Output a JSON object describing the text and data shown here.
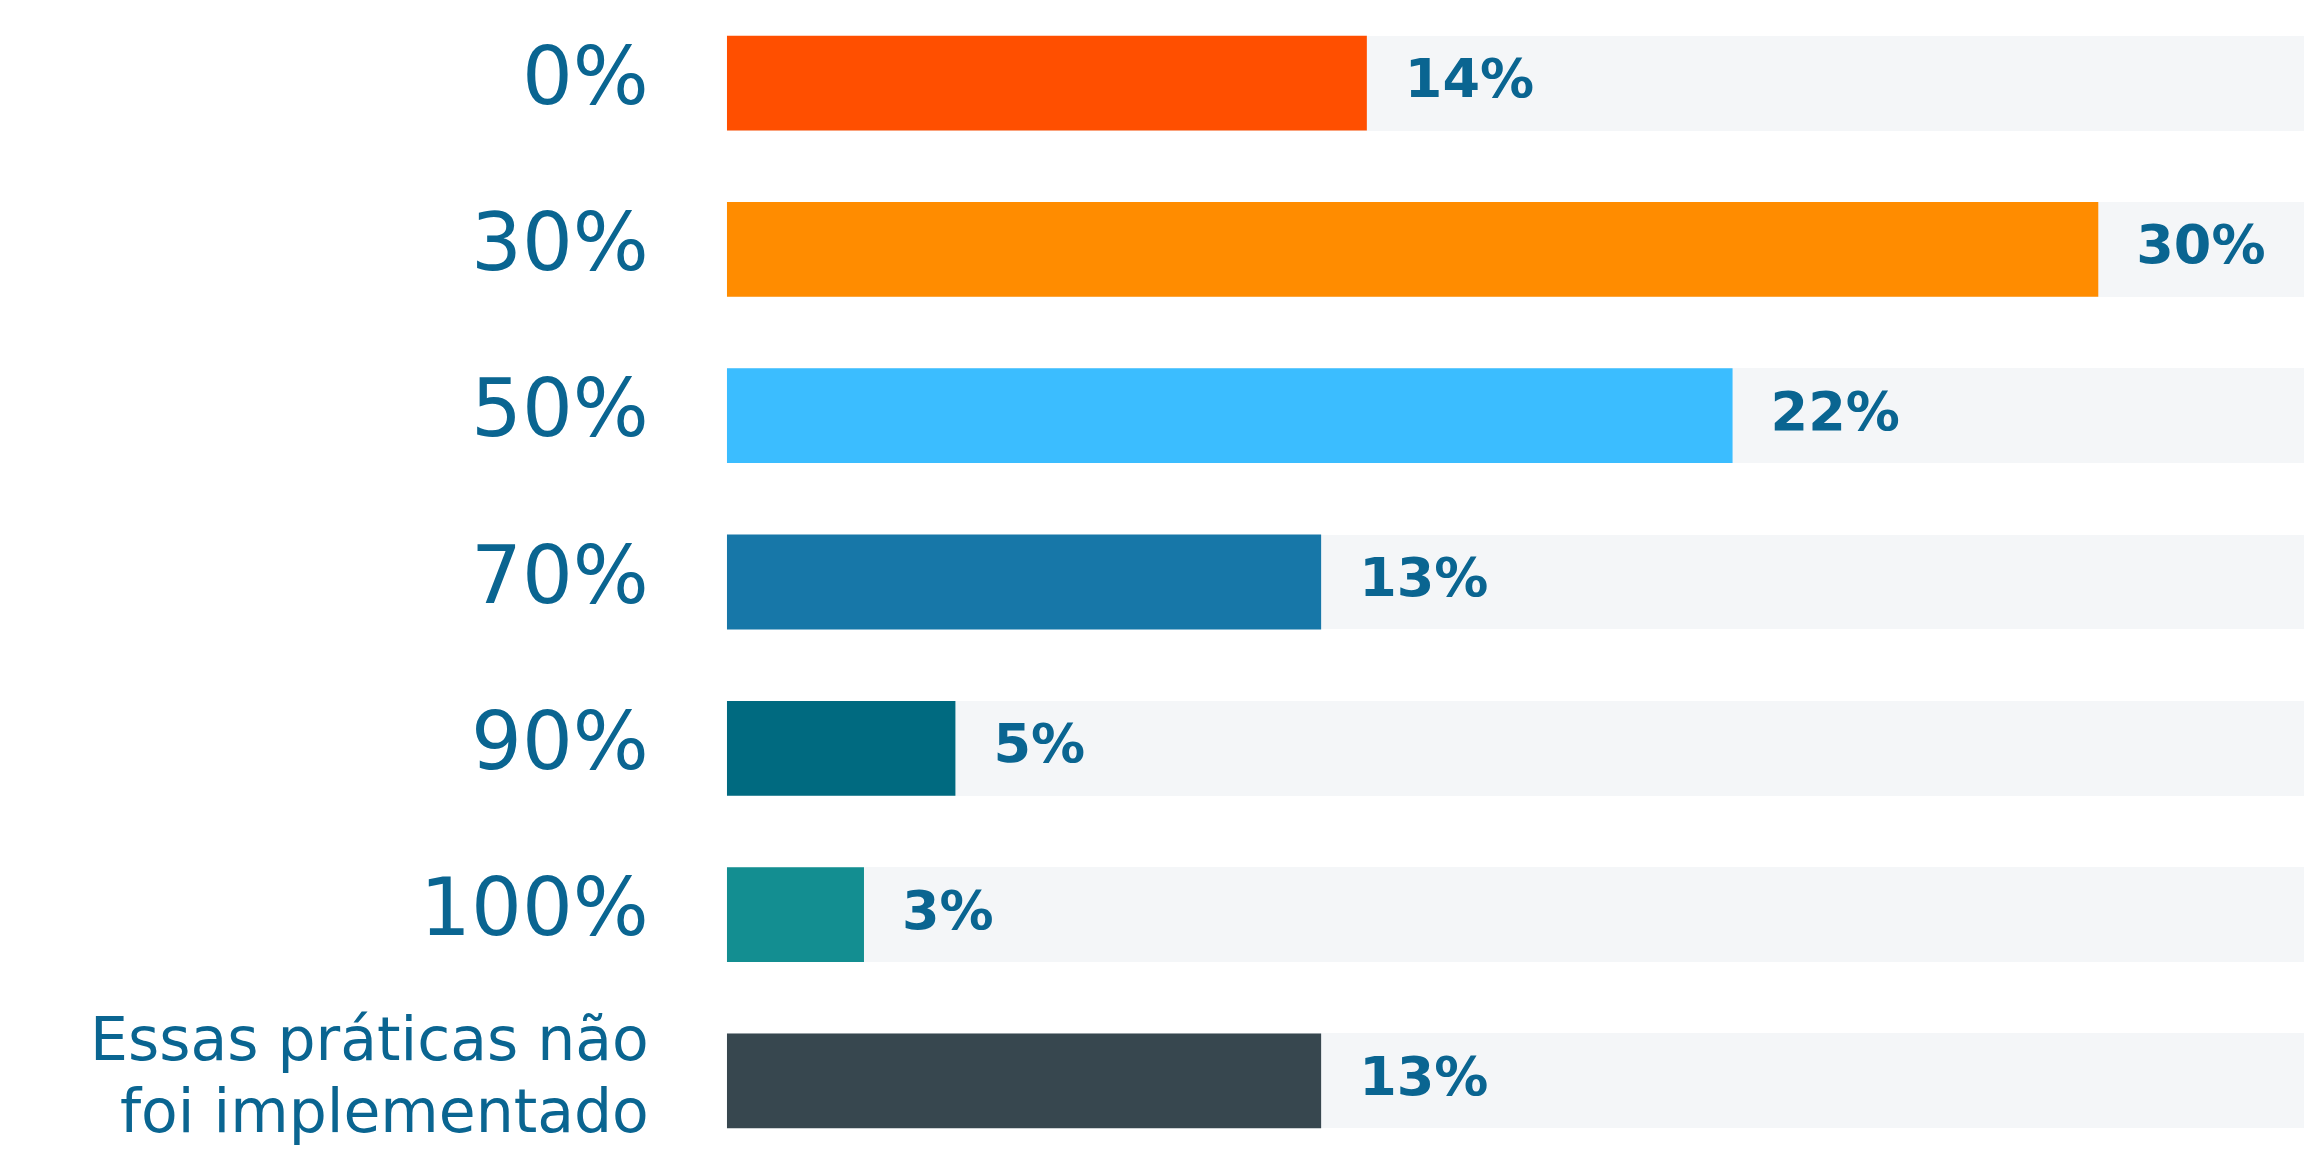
{
  "chart_data": {
    "type": "bar",
    "orientation": "horizontal",
    "categories": [
      "0%",
      "30%",
      "50%",
      "70%",
      "90%",
      "100%",
      "Essas práticas não foi implementado"
    ],
    "values": [
      14,
      30,
      22,
      13,
      5,
      3,
      13
    ],
    "value_labels": [
      "14%",
      "30%",
      "22%",
      "13%",
      "5%",
      "3%",
      "13%"
    ],
    "colors": [
      "#ff4f00",
      "#ff8c00",
      "#3bbdff",
      "#1777a8",
      "#006a80",
      "#138e91",
      "#37474f"
    ],
    "xlim": [
      0,
      34.5
    ],
    "tick_labels": "y"
  }
}
